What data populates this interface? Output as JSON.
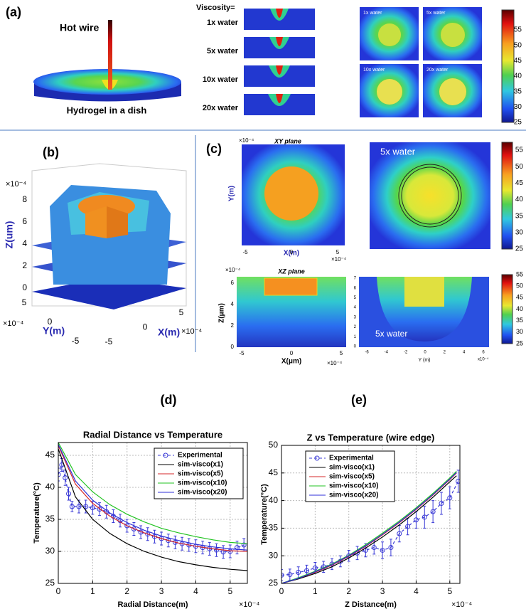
{
  "panel_a": {
    "label": "(a)",
    "hot_wire": "Hot wire",
    "dish": "Hydrogel in a dish",
    "viscosity": "Viscosity=",
    "rows": [
      "1x water",
      "5x water",
      "10x water",
      "20x  water"
    ],
    "tiles": [
      "1x water",
      "5x water",
      "10x water",
      "20x water"
    ],
    "colorbar_ticks": [
      55,
      50,
      45,
      40,
      35,
      30,
      25
    ]
  },
  "panel_b": {
    "label": "(b)",
    "z_label": "Z(um)",
    "y_label": "Y(m)",
    "x_label": "X(m)",
    "z_scale": "×10⁻⁴",
    "y_scale": "×10⁻⁴",
    "x_scale": "×10⁻⁴",
    "z_ticks": [
      8,
      6,
      4,
      2,
      0
    ],
    "y_ticks": [
      5,
      0,
      -5
    ],
    "x_ticks": [
      -5,
      0,
      5
    ]
  },
  "panel_c": {
    "label": "(c)",
    "xy": {
      "title": "XY plane",
      "scale_top": "×10⁻⁴",
      "y_label": "Y(m)",
      "x_label": "X(m)",
      "x_ticks": [
        -5,
        0,
        5
      ],
      "x_scale": "×10⁻⁴"
    },
    "top_right": {
      "caption": "5x water",
      "colorbar_ticks": [
        55,
        50,
        45,
        40,
        35,
        30,
        25
      ]
    },
    "xz": {
      "title": "XZ plane",
      "scale_top": "×10⁻⁴",
      "y_label": "Z(μm)",
      "y_ticks": [
        6,
        4,
        2,
        0
      ],
      "x_label": "X(μm)",
      "x_ticks": [
        -5,
        0,
        5
      ],
      "x_scale": "×10⁻⁴"
    },
    "bottom_right": {
      "caption": "5x water",
      "y_ticks": [
        7,
        6,
        5,
        4,
        3,
        2,
        1,
        0
      ],
      "x_ticks": [
        -6,
        -4,
        -2,
        0,
        2,
        4,
        6
      ],
      "x_label": "Y (m)",
      "x_scale": "x10⁻⁴",
      "colorbar_ticks": [
        55,
        50,
        45,
        40,
        35,
        30,
        25
      ]
    }
  },
  "chart_data": [
    {
      "type": "line",
      "panel": "(d)",
      "title": "Radial Distance vs Temperature",
      "x_label": "Radial Distance(m)",
      "x_scale": "×10⁻⁴",
      "y_label": "Temperature(°C)",
      "xlim": [
        0,
        5.5
      ],
      "ylim": [
        25,
        47
      ],
      "xticks": [
        0,
        1,
        2,
        3,
        4,
        5
      ],
      "yticks": [
        25,
        30,
        35,
        40,
        45
      ],
      "grid": true,
      "legend": "upper right",
      "series": [
        {
          "name": "Experimental",
          "color": "#3a3ad6",
          "marker": "circle",
          "dashed": true,
          "x": [
            0,
            0.1,
            0.2,
            0.3,
            0.4,
            0.6,
            0.8,
            1.0,
            1.2,
            1.4,
            1.6,
            1.8,
            2.0,
            2.2,
            2.4,
            2.6,
            2.8,
            3.0,
            3.2,
            3.4,
            3.6,
            3.8,
            4.0,
            4.2,
            4.4,
            4.6,
            4.8,
            5.0,
            5.2,
            5.4
          ],
          "values": [
            42,
            43.5,
            41.5,
            39,
            37,
            37,
            37,
            36.8,
            36.6,
            36.2,
            35.5,
            34.8,
            34,
            33.5,
            33,
            32.7,
            32.3,
            32,
            31.7,
            31.4,
            31.2,
            31,
            30.8,
            30.6,
            30.4,
            30.2,
            29.9,
            30,
            30.6,
            31
          ],
          "errors": [
            1,
            1,
            1.2,
            1,
            0.8,
            1,
            1,
            1,
            1,
            1,
            1,
            1,
            1,
            1,
            1,
            1,
            1,
            1,
            1,
            1,
            1,
            1,
            1,
            1,
            1,
            1,
            1,
            1,
            1,
            1
          ]
        },
        {
          "name": "sim-visco(x1)",
          "color": "#000000",
          "x": [
            0,
            0.5,
            1,
            1.5,
            2,
            2.5,
            3,
            3.5,
            4,
            4.5,
            5,
            5.5
          ],
          "values": [
            46,
            38.5,
            35,
            32.8,
            31.2,
            30,
            29.1,
            28.4,
            27.9,
            27.5,
            27.2,
            27
          ]
        },
        {
          "name": "sim-visco(x5)",
          "color": "#d62728",
          "x": [
            0,
            0.5,
            1,
            1.5,
            2,
            2.5,
            3,
            3.5,
            4,
            4.5,
            5,
            5.5
          ],
          "values": [
            46.5,
            40.5,
            37.5,
            35.5,
            34,
            32.9,
            32,
            31.3,
            30.8,
            30.4,
            30.1,
            30
          ]
        },
        {
          "name": "sim-visco(x10)",
          "color": "#22c322",
          "x": [
            0,
            0.5,
            1,
            1.5,
            2,
            2.5,
            3,
            3.5,
            4,
            4.5,
            5,
            5.5
          ],
          "values": [
            47,
            42,
            39.3,
            37.3,
            35.8,
            34.6,
            33.6,
            32.9,
            32.3,
            31.8,
            31.4,
            31.2
          ]
        },
        {
          "name": "sim-visco(x20)",
          "color": "#2f2fd8",
          "x": [
            0,
            0.5,
            1,
            1.5,
            2,
            2.5,
            3,
            3.5,
            4,
            4.5,
            5,
            5.5
          ],
          "values": [
            46.7,
            41,
            38,
            36,
            34.5,
            33.3,
            32.4,
            31.7,
            31.1,
            30.7,
            30.4,
            30.2
          ]
        }
      ]
    },
    {
      "type": "line",
      "panel": "(e)",
      "title": "Z vs Temperature (wire edge)",
      "x_label": "Z Distance(m)",
      "x_scale": "×10⁻⁴",
      "y_label": "Temperature(°C)",
      "xlim": [
        0,
        5.3
      ],
      "ylim": [
        25,
        50
      ],
      "xticks": [
        0,
        1,
        2,
        3,
        4,
        5
      ],
      "yticks": [
        25,
        30,
        35,
        40,
        45,
        50
      ],
      "grid": true,
      "legend": "upper left",
      "series": [
        {
          "name": "Experimental",
          "color": "#3a3ad6",
          "marker": "circle",
          "dashed": true,
          "x": [
            0,
            0.25,
            0.5,
            0.75,
            1,
            1.25,
            1.5,
            1.75,
            2,
            2.25,
            2.5,
            2.75,
            3,
            3.25,
            3.5,
            3.75,
            4,
            4.25,
            4.5,
            4.75,
            5,
            5.25
          ],
          "values": [
            26.5,
            26.6,
            27,
            27.3,
            27.8,
            28,
            28.5,
            29,
            30,
            30.5,
            31,
            31.5,
            31,
            31.5,
            34,
            35.3,
            36.5,
            37,
            38,
            39.5,
            40.5,
            43.5
          ],
          "errors": [
            1,
            1,
            1,
            1,
            1,
            1,
            1,
            1,
            1,
            1.2,
            1.2,
            1.2,
            1.5,
            1.5,
            1.5,
            1.5,
            1.5,
            2,
            2,
            2,
            2,
            2
          ]
        },
        {
          "name": "sim-visco(x1)",
          "color": "#000000",
          "x": [
            0,
            0.5,
            1,
            1.5,
            2,
            2.5,
            3,
            3.5,
            4,
            4.5,
            5,
            5.2
          ],
          "values": [
            25,
            25.8,
            26.8,
            28,
            29.6,
            31.4,
            33.4,
            35.6,
            38,
            40.6,
            43.4,
            44.5
          ]
        },
        {
          "name": "sim-visco(x5)",
          "color": "#d62728",
          "x": [
            0,
            0.5,
            1,
            1.5,
            2,
            2.5,
            3,
            3.5,
            4,
            4.5,
            5,
            5.2
          ],
          "values": [
            25,
            25.9,
            27,
            28.3,
            29.9,
            31.7,
            33.8,
            36,
            38.4,
            41,
            43.8,
            45
          ]
        },
        {
          "name": "sim-visco(x10)",
          "color": "#22c322",
          "x": [
            0,
            0.5,
            1,
            1.5,
            2,
            2.5,
            3,
            3.5,
            4,
            4.5,
            5,
            5.2
          ],
          "values": [
            25,
            26,
            27.2,
            28.5,
            30.1,
            32,
            34.1,
            36.3,
            38.7,
            41.3,
            44.1,
            45.3
          ]
        },
        {
          "name": "sim-visco(x20)",
          "color": "#2f2fd8",
          "x": [
            0,
            0.5,
            1,
            1.5,
            2,
            2.5,
            3,
            3.5,
            4,
            4.5,
            5,
            5.2
          ],
          "values": [
            25,
            25.9,
            27.1,
            28.4,
            30,
            31.8,
            33.9,
            36.1,
            38.5,
            41.1,
            43.9,
            45.1
          ]
        }
      ]
    }
  ]
}
